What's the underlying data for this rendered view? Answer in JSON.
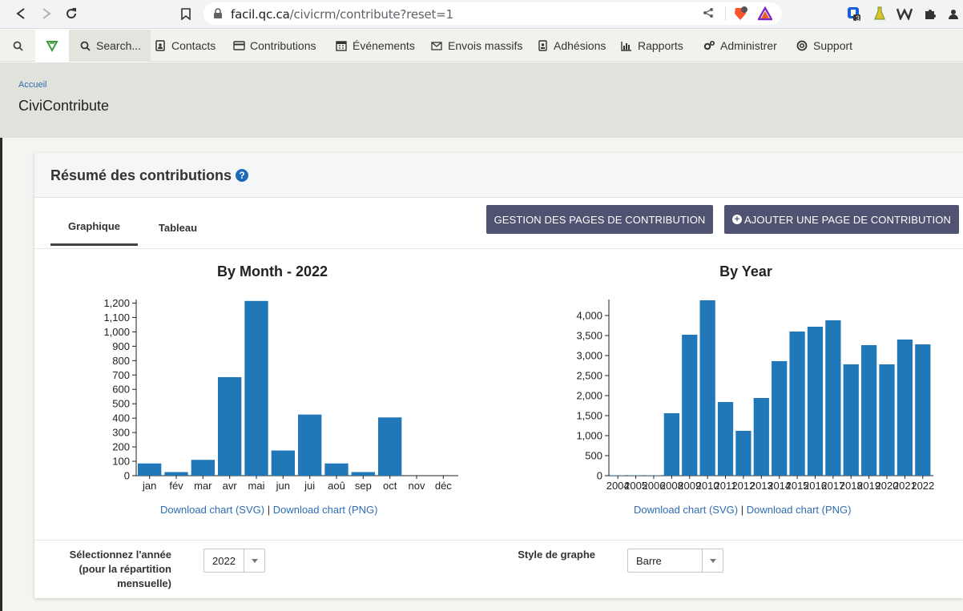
{
  "browser": {
    "url_host": "facil.qc.ca",
    "url_path": "/civicrm/contribute?reset=1",
    "extension_badge": "3"
  },
  "menubar": {
    "search_label": "Search...",
    "items": [
      {
        "label": "Contacts"
      },
      {
        "label": "Contributions"
      },
      {
        "label": "Événements"
      },
      {
        "label": "Envois massifs"
      },
      {
        "label": "Adhésions"
      },
      {
        "label": "Rapports"
      },
      {
        "label": "Administrer"
      },
      {
        "label": "Support"
      }
    ]
  },
  "page": {
    "breadcrumb": "Accueil",
    "title": "CiviContribute"
  },
  "panel": {
    "title": "Résumé des contributions",
    "tabs": [
      {
        "label": "Graphique",
        "active": true
      },
      {
        "label": "Tableau",
        "active": false
      }
    ],
    "buttons": {
      "manage": "GESTION DES PAGES DE CONTRIBUTION",
      "add": "AJOUTER UNE PAGE DE CONTRIBUTION"
    },
    "download_svg": "Download chart (SVG)",
    "download_separator": "|",
    "download_png": "Download chart (PNG)",
    "year_label_lines": [
      "Sélectionnez l'année",
      "(pour la répartition",
      "mensuelle)"
    ],
    "year_value": "2022",
    "style_label": "Style de graphe",
    "style_value": "Barre"
  },
  "colors": {
    "bar": "#2178b8",
    "button": "#4f5271",
    "link": "#2f6db1"
  },
  "chart_data": [
    {
      "type": "bar",
      "title": "By Month - 2022",
      "categories": [
        "jan",
        "fév",
        "mar",
        "avr",
        "mai",
        "jun",
        "jui",
        "aoû",
        "sep",
        "oct",
        "nov",
        "déc"
      ],
      "values": [
        85,
        25,
        110,
        685,
        1215,
        175,
        425,
        85,
        25,
        405,
        0,
        0
      ],
      "ylim": [
        0,
        1225
      ],
      "yticks": [
        0,
        100,
        200,
        300,
        400,
        500,
        600,
        700,
        800,
        900,
        1000,
        1100,
        1200
      ],
      "ytick_labels": [
        "0",
        "100",
        "200",
        "300",
        "400",
        "500",
        "600",
        "700",
        "800",
        "900",
        "1,000",
        "1,100",
        "1,200"
      ],
      "grid": false
    },
    {
      "type": "bar",
      "title": "By Year",
      "categories": [
        "2004",
        "2005",
        "2006",
        "2008",
        "2009",
        "2010",
        "2011",
        "2012",
        "2013",
        "2014",
        "2015",
        "2016",
        "2017",
        "2018",
        "2019",
        "2020",
        "2021",
        "2022"
      ],
      "values": [
        10,
        10,
        10,
        1560,
        3520,
        4380,
        1840,
        1120,
        1940,
        2860,
        3600,
        3720,
        3880,
        2780,
        3260,
        2780,
        3400,
        3280
      ],
      "ylim": [
        0,
        4400
      ],
      "yticks": [
        0,
        500,
        1000,
        1500,
        2000,
        2500,
        3000,
        3500,
        4000
      ],
      "ytick_labels": [
        "0",
        "500",
        "1,000",
        "1,500",
        "2,000",
        "2,500",
        "3,000",
        "3,500",
        "4,000"
      ],
      "grid": false
    }
  ]
}
